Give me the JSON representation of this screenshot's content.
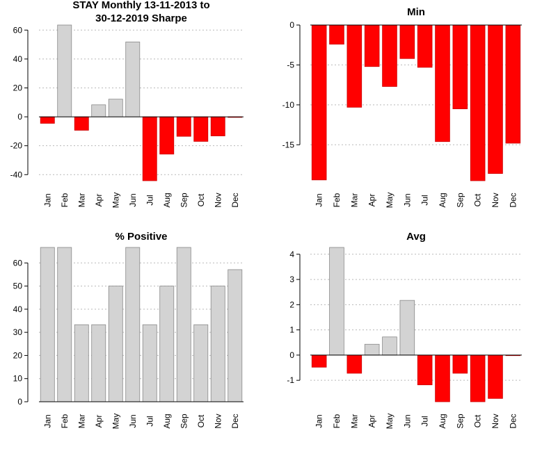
{
  "colors": {
    "positive": "#d3d3d3",
    "negative": "#ff0000",
    "bar_border": "#888888",
    "grid": "#b8b8b8"
  },
  "chart_data": [
    {
      "type": "bar",
      "title": [
        "STAY Monthly 13-11-2013 to",
        "30-12-2019 Sharpe"
      ],
      "categories": [
        "Jan",
        "Feb",
        "Mar",
        "Apr",
        "May",
        "Jun",
        "Jul",
        "Aug",
        "Sep",
        "Oct",
        "Nov",
        "Dec"
      ],
      "values": [
        -4.5,
        63.5,
        -9.3,
        8.3,
        12.2,
        51.8,
        -44.2,
        -25.8,
        -13.5,
        -17.0,
        -13.2,
        -0.3
      ],
      "yticks": [
        60,
        40,
        20,
        0,
        -20,
        -40
      ],
      "ytick_labels": [
        "60",
        "40",
        "20",
        "0",
        "-20",
        "-40"
      ],
      "ylim": [
        -44.2,
        63.5
      ],
      "grid": true
    },
    {
      "type": "bar",
      "title": [
        "Min"
      ],
      "categories": [
        "Jan",
        "Feb",
        "Mar",
        "Apr",
        "May",
        "Jun",
        "Jul",
        "Aug",
        "Sep",
        "Oct",
        "Nov",
        "Dec"
      ],
      "values": [
        -19.4,
        -2.4,
        -10.3,
        -5.2,
        -7.7,
        -4.2,
        -5.3,
        -14.6,
        -10.5,
        -19.5,
        -18.6,
        -14.8
      ],
      "yticks": [
        0,
        -5,
        -10,
        -15
      ],
      "ytick_labels": [
        "0",
        "-5",
        "-10",
        "-15"
      ],
      "ylim": [
        -19.5,
        0
      ],
      "grid": true
    },
    {
      "type": "bar",
      "title": [
        "% Positive"
      ],
      "categories": [
        "Jan",
        "Feb",
        "Mar",
        "Apr",
        "May",
        "Jun",
        "Jul",
        "Aug",
        "Sep",
        "Oct",
        "Nov",
        "Dec"
      ],
      "values": [
        66.7,
        66.7,
        33.3,
        33.3,
        50.0,
        66.7,
        33.3,
        50.0,
        66.7,
        33.3,
        50.0,
        57.1
      ],
      "yticks": [
        60,
        50,
        40,
        30,
        20,
        10,
        0
      ],
      "ytick_labels": [
        "60",
        "50",
        "40",
        "30",
        "20",
        "10",
        "0"
      ],
      "ylim": [
        0,
        66.7
      ],
      "grid": true
    },
    {
      "type": "bar",
      "title": [
        "Avg"
      ],
      "categories": [
        "Jan",
        "Feb",
        "Mar",
        "Apr",
        "May",
        "Jun",
        "Jul",
        "Aug",
        "Sep",
        "Oct",
        "Nov",
        "Dec"
      ],
      "values": [
        -0.48,
        4.27,
        -0.72,
        0.43,
        0.72,
        2.17,
        -1.18,
        -1.85,
        -0.72,
        -1.85,
        -1.72,
        -0.02
      ],
      "yticks": [
        4,
        3,
        2,
        1,
        0,
        -1
      ],
      "ytick_labels": [
        "4",
        "3",
        "2",
        "1",
        "0",
        "-1"
      ],
      "ylim": [
        -1.85,
        4.27
      ],
      "grid": true
    }
  ]
}
